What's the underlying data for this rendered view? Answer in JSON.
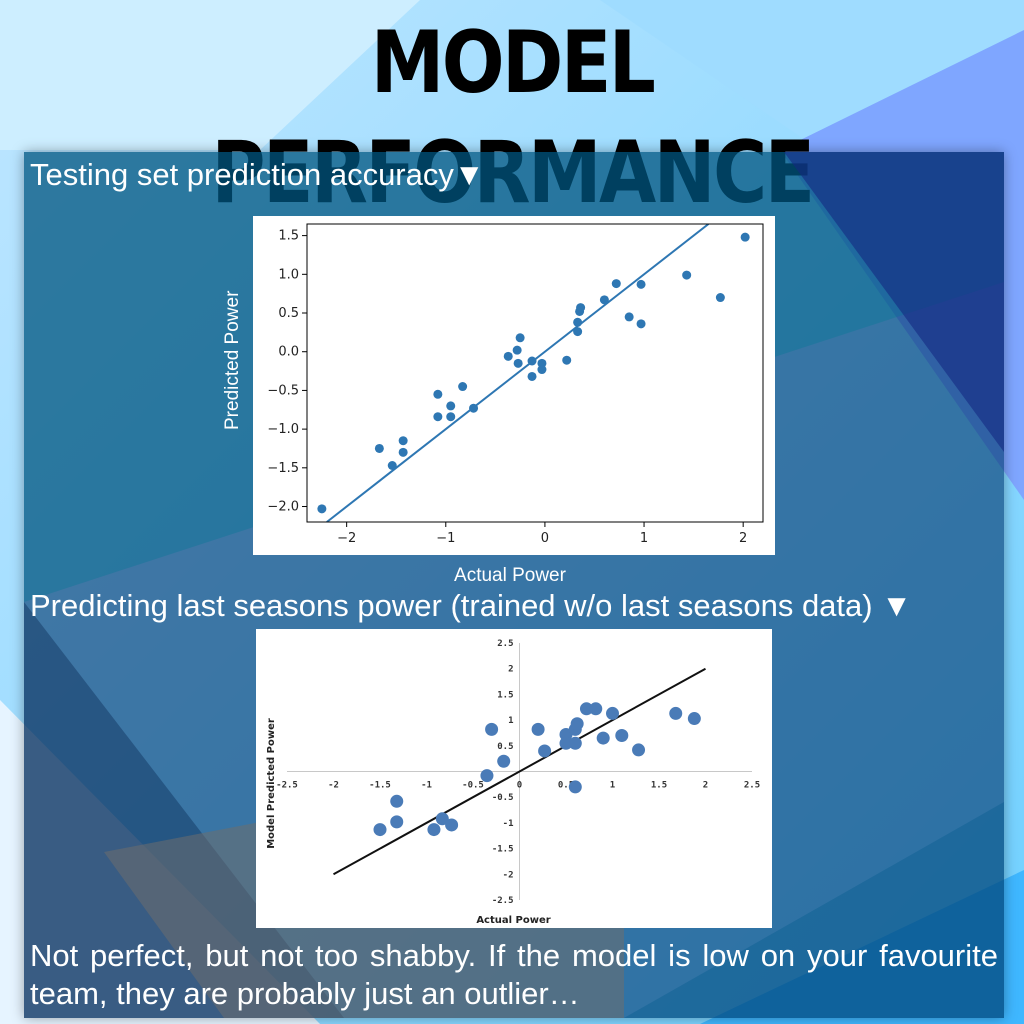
{
  "title": "MODEL PERFORMANCE",
  "caption_top": "Testing set prediction accuracy▼",
  "caption_bottom": "Predicting last seasons power (trained w/o last seasons data) ▼",
  "footer": "Not perfect, but not too shabby. If the model is low on your favourite team, they are probably just an outlier…",
  "chart_data": [
    {
      "type": "scatter",
      "title": "",
      "xlabel": "Actual Power",
      "ylabel": "Predicted Power",
      "xlim": [
        -2.4,
        2.2
      ],
      "ylim": [
        -2.2,
        1.65
      ],
      "xticks": [
        "−2",
        "−1",
        "0",
        "1",
        "2"
      ],
      "xtick_values": [
        -2,
        -1,
        0,
        1,
        2
      ],
      "yticks": [
        "−2.0",
        "−1.5",
        "−1.0",
        "−0.5",
        "0.0",
        "0.5",
        "1.0",
        "1.5"
      ],
      "ytick_values": [
        -2.0,
        -1.5,
        -1.0,
        -0.5,
        0.0,
        0.5,
        1.0,
        1.5
      ],
      "color": "#2e77b3",
      "fit_line": [
        [
          -2.2,
          -2.2
        ],
        [
          1.65,
          1.65
        ]
      ],
      "points": [
        [
          -2.25,
          -2.03
        ],
        [
          -1.67,
          -1.25
        ],
        [
          -1.54,
          -1.47
        ],
        [
          -1.43,
          -1.15
        ],
        [
          -1.43,
          -1.3
        ],
        [
          -1.08,
          -0.55
        ],
        [
          -1.08,
          -0.84
        ],
        [
          -0.95,
          -0.7
        ],
        [
          -0.95,
          -0.84
        ],
        [
          -0.83,
          -0.45
        ],
        [
          -0.72,
          -0.73
        ],
        [
          -0.37,
          -0.06
        ],
        [
          -0.28,
          0.02
        ],
        [
          -0.25,
          0.18
        ],
        [
          -0.27,
          -0.15
        ],
        [
          -0.13,
          -0.32
        ],
        [
          -0.13,
          -0.12
        ],
        [
          -0.03,
          -0.15
        ],
        [
          -0.03,
          -0.23
        ],
        [
          0.22,
          -0.11
        ],
        [
          0.33,
          0.38
        ],
        [
          0.33,
          0.26
        ],
        [
          0.35,
          0.52
        ],
        [
          0.36,
          0.57
        ],
        [
          0.6,
          0.67
        ],
        [
          0.72,
          0.88
        ],
        [
          0.85,
          0.45
        ],
        [
          0.97,
          0.36
        ],
        [
          0.97,
          0.87
        ],
        [
          1.43,
          0.99
        ],
        [
          1.77,
          0.7
        ],
        [
          2.02,
          1.48
        ]
      ]
    },
    {
      "type": "scatter",
      "title": "",
      "xlabel": "Actual Power",
      "ylabel": "Model Predicted Power",
      "xlim": [
        -2.5,
        2.5
      ],
      "ylim": [
        -2.5,
        2.5
      ],
      "xticks": [
        "-2.5",
        "-2",
        "-1.5",
        "-1",
        "-0.5",
        "0",
        "0.5",
        "1",
        "1.5",
        "2",
        "2.5"
      ],
      "xtick_values": [
        -2.5,
        -2,
        -1.5,
        -1,
        -0.5,
        0,
        0.5,
        1,
        1.5,
        2,
        2.5
      ],
      "yticks": [
        "2.5",
        "2",
        "1.5",
        "1",
        "0.5",
        "0",
        "-0.5",
        "-1",
        "-1.5",
        "-2",
        "-2.5"
      ],
      "ytick_values": [
        2.5,
        2,
        1.5,
        1,
        0.5,
        0,
        -0.5,
        -1,
        -1.5,
        -2,
        -2.5
      ],
      "color": "#4a7bb7",
      "fit_line": [
        [
          -2,
          -2
        ],
        [
          2,
          2
        ]
      ],
      "points": [
        [
          -1.5,
          -1.13
        ],
        [
          -1.32,
          -0.58
        ],
        [
          -1.32,
          -0.98
        ],
        [
          -0.92,
          -1.13
        ],
        [
          -0.83,
          -0.92
        ],
        [
          -0.73,
          -1.04
        ],
        [
          -0.35,
          -0.08
        ],
        [
          -0.3,
          0.82
        ],
        [
          -0.17,
          0.2
        ],
        [
          0.2,
          0.82
        ],
        [
          0.27,
          0.4
        ],
        [
          0.5,
          0.72
        ],
        [
          0.5,
          0.55
        ],
        [
          0.6,
          0.55
        ],
        [
          0.6,
          0.82
        ],
        [
          0.62,
          0.93
        ],
        [
          0.6,
          -0.3
        ],
        [
          0.72,
          1.22
        ],
        [
          0.82,
          1.22
        ],
        [
          0.9,
          0.65
        ],
        [
          1.0,
          1.13
        ],
        [
          1.1,
          0.7
        ],
        [
          1.28,
          0.42
        ],
        [
          1.68,
          1.13
        ],
        [
          1.88,
          1.03
        ]
      ]
    }
  ]
}
